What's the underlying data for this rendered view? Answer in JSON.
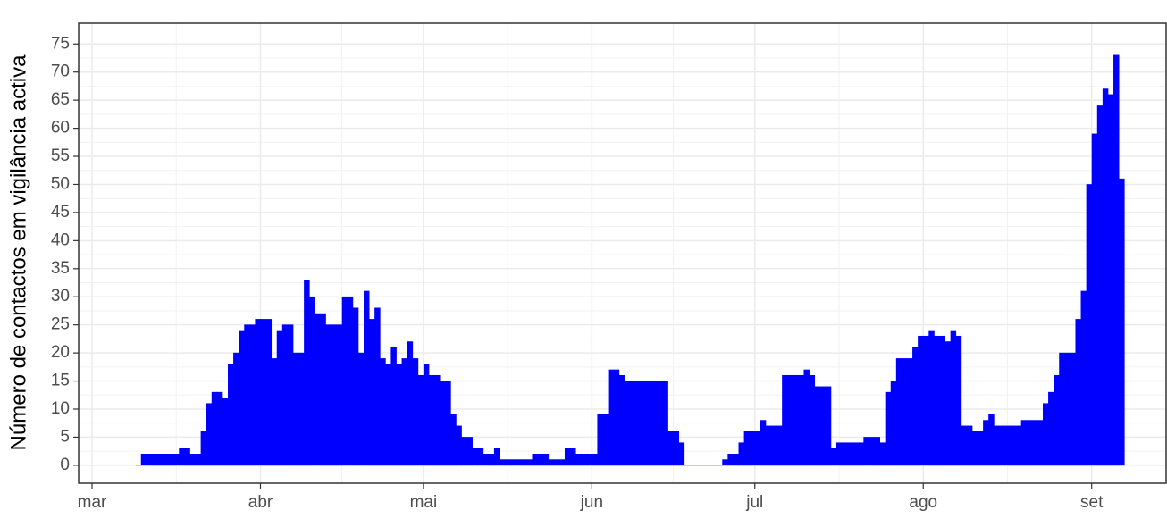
{
  "chart_data": {
    "type": "bar",
    "y_label": "Número de contactos em vigilância activa",
    "color": "#0000ff",
    "x": [
      8,
      9,
      10,
      11,
      12,
      13,
      14,
      15,
      16,
      17,
      18,
      19,
      20,
      21,
      22,
      23,
      24,
      25,
      26,
      27,
      28,
      29,
      30,
      31,
      32,
      33,
      34,
      35,
      36,
      37,
      38,
      39,
      40,
      41,
      42,
      43,
      44,
      45,
      46,
      47,
      48,
      49,
      50,
      51,
      52,
      53,
      54,
      55,
      56,
      57,
      58,
      59,
      60,
      61,
      62,
      63,
      64,
      65,
      66,
      67,
      68,
      69,
      70,
      71,
      72,
      73,
      74,
      75,
      76,
      77,
      78,
      79,
      80,
      81,
      82,
      83,
      84,
      85,
      86,
      87,
      88,
      89,
      90,
      91,
      92,
      93,
      94,
      95,
      96,
      97,
      98,
      99,
      100,
      101,
      102,
      103,
      104,
      105,
      106,
      107,
      108,
      109,
      110,
      111,
      112,
      113,
      114,
      115,
      116,
      117,
      118,
      119,
      120,
      121,
      122,
      123,
      124,
      125,
      126,
      127,
      128,
      129,
      130,
      131,
      132,
      133,
      134,
      135,
      136,
      137,
      138,
      139,
      140,
      141,
      142,
      143,
      144,
      145,
      146,
      147,
      148,
      149,
      150,
      151,
      152,
      153,
      154,
      155,
      156,
      157,
      158,
      159,
      160,
      161,
      162,
      163,
      164,
      165,
      166,
      167,
      168,
      169,
      170,
      171,
      172,
      173,
      174,
      175,
      176,
      177,
      178,
      179,
      180,
      181,
      182,
      183,
      184,
      185,
      186,
      187,
      188,
      189
    ],
    "values": [
      0,
      2,
      2,
      2,
      2,
      2,
      2,
      2,
      3,
      3,
      2,
      2,
      6,
      11,
      13,
      13,
      12,
      18,
      20,
      24,
      25,
      25,
      26,
      26,
      26,
      19,
      24,
      25,
      25,
      20,
      20,
      33,
      30,
      27,
      27,
      25,
      25,
      25,
      30,
      30,
      28,
      20,
      31,
      26,
      28,
      19,
      18,
      21,
      18,
      19,
      22,
      19,
      16,
      18,
      16,
      16,
      15,
      15,
      9,
      7,
      5,
      5,
      3,
      3,
      2,
      2,
      3,
      1,
      1,
      1,
      1,
      1,
      1,
      2,
      2,
      2,
      1,
      1,
      1,
      3,
      3,
      2,
      2,
      2,
      2,
      9,
      9,
      17,
      17,
      16,
      15,
      15,
      15,
      15,
      15,
      15,
      15,
      15,
      6,
      6,
      4,
      0,
      0,
      0,
      0,
      0,
      0,
      0,
      1,
      2,
      2,
      4,
      6,
      6,
      6,
      8,
      7,
      7,
      7,
      16,
      16,
      16,
      16,
      17,
      16,
      14,
      14,
      14,
      3,
      4,
      4,
      4,
      4,
      4,
      5,
      5,
      5,
      4,
      13,
      15,
      19,
      19,
      19,
      21,
      23,
      23,
      24,
      23,
      23,
      22,
      24,
      23,
      7,
      7,
      6,
      6,
      8,
      9,
      7,
      7,
      7,
      7,
      7,
      8,
      8,
      8,
      8,
      11,
      13,
      16,
      20,
      20,
      20,
      26,
      31,
      50,
      59,
      64,
      67,
      66,
      73,
      51
    ],
    "xlim": [
      -2.47,
      197.7
    ],
    "xticks": [
      {
        "value": 0,
        "label": "mar"
      },
      {
        "value": 31,
        "label": "abr"
      },
      {
        "value": 61,
        "label": "mai"
      },
      {
        "value": 92,
        "label": "jun"
      },
      {
        "value": 122,
        "label": "jul"
      },
      {
        "value": 153,
        "label": "ago"
      },
      {
        "value": 184,
        "label": "set"
      }
    ],
    "ylim": [
      -3.2,
      78.7
    ],
    "yticks": [
      0,
      5,
      10,
      15,
      20,
      25,
      30,
      35,
      40,
      45,
      50,
      55,
      60,
      65,
      70,
      75
    ],
    "grid": true
  }
}
